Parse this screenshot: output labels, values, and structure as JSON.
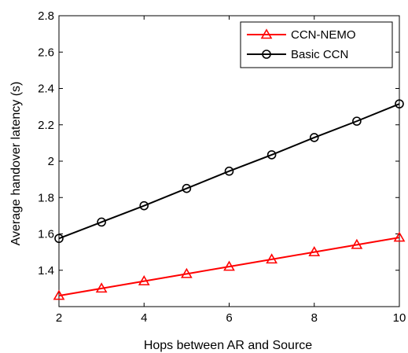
{
  "chart_data": {
    "type": "line",
    "title": "",
    "xlabel": "Hops between AR and Source",
    "ylabel": "Average handover latency (s)",
    "xlim": [
      2,
      10
    ],
    "ylim": [
      1.2,
      2.8
    ],
    "x_ticks": [
      2,
      4,
      6,
      8,
      10
    ],
    "y_ticks": [
      1.4,
      1.6,
      1.8,
      2.0,
      2.2,
      2.4,
      2.6,
      2.8
    ],
    "x_tick_labels": [
      "2",
      "4",
      "6",
      "8",
      "10"
    ],
    "y_tick_labels": [
      "1.4",
      "1.6",
      "1.8",
      "2",
      "2.2",
      "2.4",
      "2.6",
      "2.8"
    ],
    "grid": false,
    "legend_position": "top-right",
    "x": [
      2,
      3,
      4,
      5,
      6,
      7,
      8,
      9,
      10
    ],
    "series": [
      {
        "name": "CCN-NEMO",
        "color": "#ff0000",
        "marker": "triangle",
        "values": [
          1.26,
          1.3,
          1.34,
          1.38,
          1.42,
          1.46,
          1.5,
          1.54,
          1.58
        ]
      },
      {
        "name": "Basic CCN",
        "color": "#000000",
        "marker": "circle",
        "values": [
          1.575,
          1.665,
          1.755,
          1.85,
          1.945,
          2.035,
          2.13,
          2.22,
          2.315
        ]
      }
    ]
  }
}
